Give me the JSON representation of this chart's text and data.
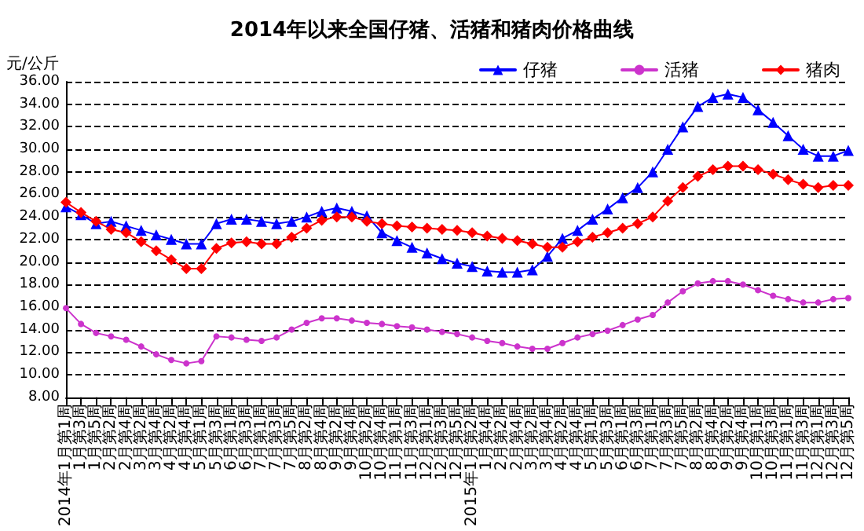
{
  "chart_data": {
    "type": "line",
    "title": "2014年以来全国仔猪、活猪和猪肉价格曲线",
    "ylabel": "元/公斤",
    "categories": [
      "2014年1月第1周",
      "1月第3周",
      "1月第5周",
      "2月第2周",
      "2月第4周",
      "3月第2周",
      "3月第4周",
      "4月第2周",
      "4月第4周",
      "5月第1周",
      "5月第3周",
      "6月第1周",
      "6月第3周",
      "7月第1周",
      "7月第3周",
      "7月第5周",
      "8月第2周",
      "8月第4周",
      "9月第2周",
      "9月第4周",
      "10月第2周",
      "10月第4周",
      "11月第1周",
      "11月第3周",
      "12月第1周",
      "12月第3周",
      "12月第5周",
      "2015年1月第2周",
      "1月第4周",
      "2月第2周",
      "2月第4周",
      "3月第2周",
      "3月第4周",
      "4月第2周",
      "4月第4周",
      "5月第1周",
      "5月第3周",
      "6月第1周",
      "6月第3周",
      "7月第1周",
      "7月第3周",
      "7月第5周",
      "8月第2周",
      "8月第4周",
      "9月第2周",
      "9月第4周",
      "10月第1周",
      "10月第3周",
      "11月第1周",
      "11月第3周",
      "12月第1周",
      "12月第3周",
      "12月第5周"
    ],
    "series": [
      {
        "name": "仔猪",
        "color": "#0000ff",
        "marker": "triangle",
        "values": [
          24.9,
          24.2,
          23.4,
          23.6,
          23.2,
          22.8,
          22.4,
          22.0,
          21.6,
          21.6,
          23.4,
          23.8,
          23.8,
          23.6,
          23.4,
          23.6,
          24.0,
          24.5,
          24.8,
          24.5,
          24.1,
          22.6,
          21.9,
          21.3,
          20.8,
          20.3,
          19.9,
          19.6,
          19.2,
          19.1,
          19.1,
          19.3,
          20.5,
          22.1,
          22.8,
          23.8,
          24.7,
          25.7,
          26.6,
          28.0,
          30.0,
          32.0,
          33.8,
          34.6,
          34.9,
          34.6,
          33.5,
          32.4,
          31.2,
          30.0,
          29.4,
          29.4,
          29.9
        ]
      },
      {
        "name": "活猪",
        "color": "#cc33cc",
        "marker": "circle",
        "values": [
          15.9,
          14.5,
          13.7,
          13.4,
          13.1,
          12.5,
          11.8,
          11.3,
          11.0,
          11.2,
          13.4,
          13.3,
          13.1,
          13.0,
          13.3,
          14.0,
          14.6,
          15.0,
          15.0,
          14.8,
          14.6,
          14.5,
          14.3,
          14.2,
          14.0,
          13.8,
          13.6,
          13.3,
          13.0,
          12.8,
          12.5,
          12.3,
          12.3,
          12.8,
          13.3,
          13.6,
          13.9,
          14.4,
          14.9,
          15.3,
          16.4,
          17.4,
          18.1,
          18.3,
          18.3,
          18.0,
          17.5,
          17.0,
          16.7,
          16.4,
          16.4,
          16.7,
          16.8
        ]
      },
      {
        "name": "猪肉",
        "color": "#ff0000",
        "marker": "diamond",
        "values": [
          25.3,
          24.4,
          23.6,
          22.9,
          22.6,
          21.8,
          21.0,
          20.2,
          19.4,
          19.4,
          21.2,
          21.7,
          21.8,
          21.6,
          21.6,
          22.2,
          23.0,
          23.7,
          24.0,
          24.0,
          23.6,
          23.4,
          23.2,
          23.1,
          23.0,
          22.9,
          22.8,
          22.6,
          22.3,
          22.1,
          21.9,
          21.6,
          21.3,
          21.3,
          21.8,
          22.2,
          22.6,
          23.0,
          23.4,
          24.0,
          25.4,
          26.6,
          27.6,
          28.2,
          28.5,
          28.5,
          28.2,
          27.8,
          27.3,
          26.9,
          26.6,
          26.8,
          26.8
        ]
      }
    ],
    "ylim": [
      8,
      36
    ],
    "yticks": [
      {
        "value": 8,
        "label": "8.00"
      },
      {
        "value": 10,
        "label": "10.00"
      },
      {
        "value": 12,
        "label": "12.00"
      },
      {
        "value": 14,
        "label": "14.00"
      },
      {
        "value": 16,
        "label": "16.00"
      },
      {
        "value": 18,
        "label": "18.00"
      },
      {
        "value": 20,
        "label": "20.00"
      },
      {
        "value": 22,
        "label": "22.00"
      },
      {
        "value": 24,
        "label": "24.00"
      },
      {
        "value": 26,
        "label": "26.00"
      },
      {
        "value": 28,
        "label": "28.00"
      },
      {
        "value": 30,
        "label": "30.00"
      },
      {
        "value": 32,
        "label": "32.00"
      },
      {
        "value": 34,
        "label": "34.00"
      },
      {
        "value": 36,
        "label": "36.00"
      }
    ],
    "grid": "y",
    "legend": "top right",
    "line_style": "solid"
  }
}
